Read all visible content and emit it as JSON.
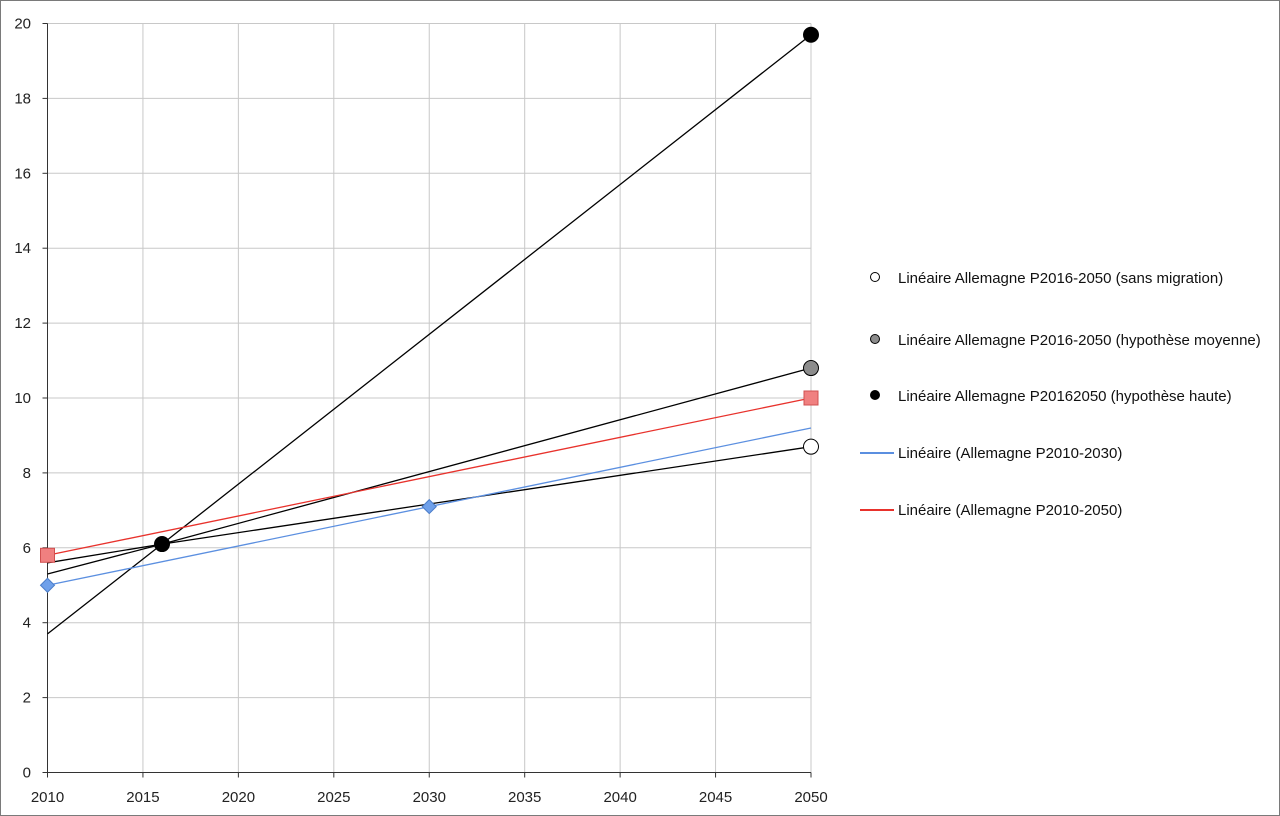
{
  "chart_data": {
    "type": "line",
    "x_ticks": [
      "2010",
      "2015",
      "2020",
      "2025",
      "2030",
      "2035",
      "2040",
      "2045",
      "2050"
    ],
    "y_ticks": [
      "0",
      "2",
      "4",
      "6",
      "8",
      "10",
      "12",
      "14",
      "16",
      "18",
      "20"
    ],
    "xlim": [
      2010,
      2050
    ],
    "ylim": [
      0,
      20
    ],
    "grid": true,
    "legend_position": "right",
    "series": [
      {
        "name": "Linéaire Allemagne P2016-2050 (sans migration)",
        "kind": "trend",
        "color": "#000000",
        "marker": "circle",
        "marker_fill": "#ffffff",
        "x": [
          2010,
          2016,
          2050
        ],
        "y": [
          5.6,
          6.1,
          8.7
        ],
        "marker_points": [
          [
            2050,
            8.7
          ]
        ]
      },
      {
        "name": "Linéaire Allemagne P2016-2050 (hypothèse moyenne)",
        "kind": "trend",
        "color": "#000000",
        "marker": "circle",
        "marker_fill": "#8c8c8c",
        "x": [
          2010,
          2016,
          2050
        ],
        "y": [
          5.3,
          6.1,
          10.8
        ],
        "marker_points": [
          [
            2050,
            10.8
          ]
        ]
      },
      {
        "name": "Linéaire Allemagne P20162050 (hypothèse haute)",
        "kind": "trend",
        "color": "#000000",
        "marker": "circle",
        "marker_fill": "#000000",
        "x": [
          2010,
          2016,
          2050
        ],
        "y": [
          3.7,
          6.1,
          19.7
        ],
        "marker_points": [
          [
            2016,
            6.1
          ],
          [
            2050,
            19.7
          ]
        ]
      },
      {
        "name": "Linéaire (Allemagne P2010-2030)",
        "kind": "trend",
        "color": "#5b8fe0",
        "marker": "diamond",
        "marker_fill": "#6fa0ea",
        "x": [
          2010,
          2050
        ],
        "y": [
          5.0,
          9.2
        ],
        "marker_points": [
          [
            2010,
            5.0
          ],
          [
            2030,
            7.1
          ]
        ]
      },
      {
        "name": "Linéaire (Allemagne P2010-2050)",
        "kind": "trend",
        "color": "#e8322c",
        "marker": "square",
        "marker_fill": "#f08080",
        "x": [
          2010,
          2050
        ],
        "y": [
          5.8,
          10.0
        ],
        "marker_points": [
          [
            2010,
            5.8
          ],
          [
            2050,
            10.0
          ]
        ]
      }
    ],
    "legend": [
      {
        "label": "Linéaire Allemagne P2016-2050 (sans migration)",
        "key": "circle",
        "fill": "#ffffff",
        "color": "#000000"
      },
      {
        "label": "Linéaire Allemagne P2016-2050 (hypothèse moyenne)",
        "key": "circle",
        "fill": "#8c8c8c",
        "color": "#000000"
      },
      {
        "label": "Linéaire Allemagne P20162050 (hypothèse haute)",
        "key": "circle",
        "fill": "#000000",
        "color": "#000000"
      },
      {
        "label": "Linéaire (Allemagne P2010-2030)",
        "key": "line",
        "fill": "#5b8fe0",
        "color": "#5b8fe0"
      },
      {
        "label": "Linéaire (Allemagne P2010-2050)",
        "key": "line",
        "fill": "#e8322c",
        "color": "#e8322c"
      }
    ]
  }
}
